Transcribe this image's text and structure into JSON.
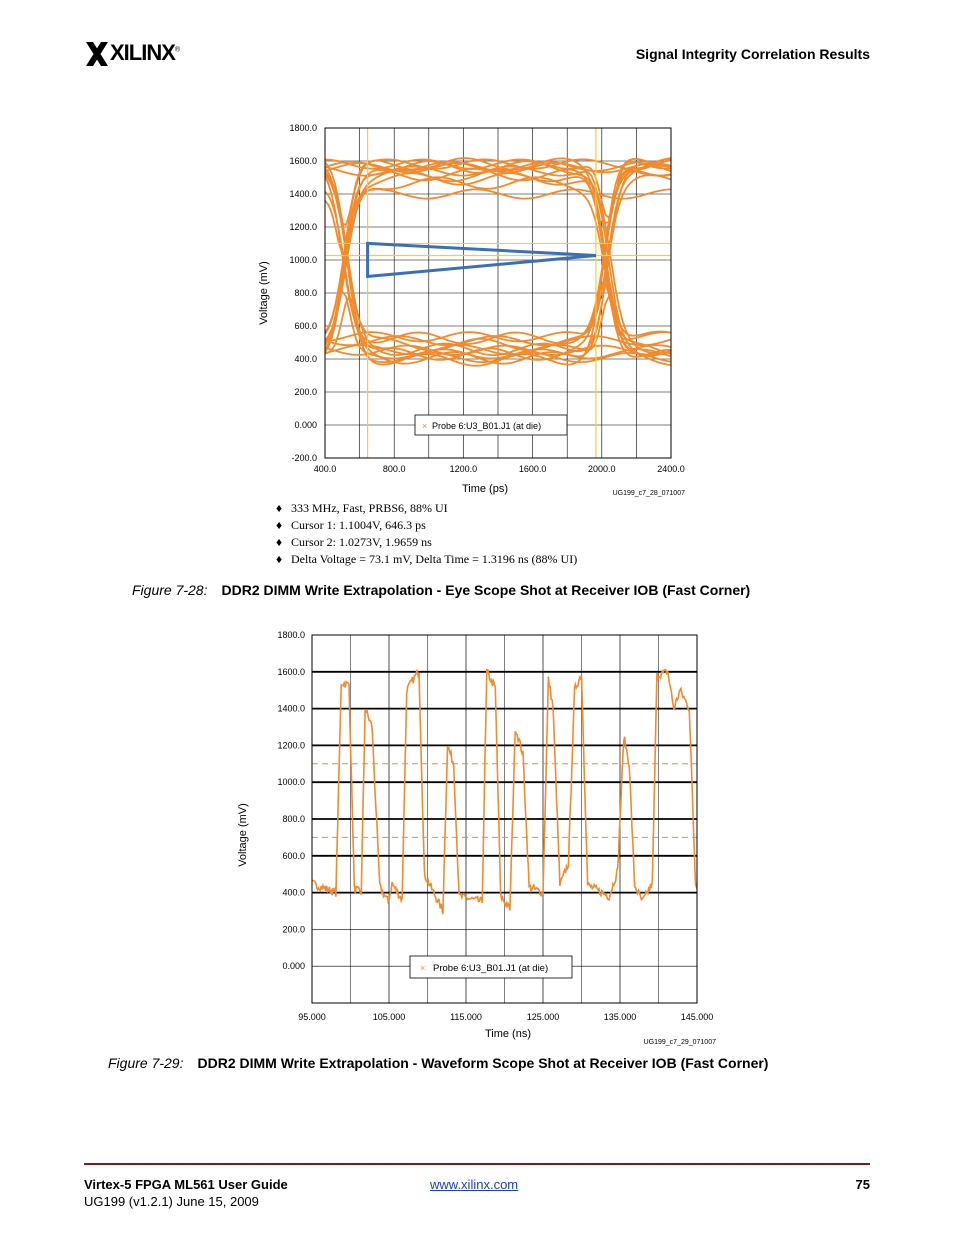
{
  "header": {
    "brand": "XILINX",
    "brand_mark": "®",
    "section_title": "Signal Integrity Correlation Results"
  },
  "figure1": {
    "caption_number": "Figure 7-28:",
    "caption_text": "DDR2 DIMM Write Extrapolation - Eye Scope Shot at Receiver IOB (Fast Corner)",
    "notes": [
      "333 MHz, Fast, PRBS6, 88% UI",
      "Cursor 1: 1.1004V, 646.3 ps",
      "Cursor 2: 1.0273V, 1.9659 ns",
      "Delta Voltage = 73.1 mV, Delta Time = 1.3196 ns (88% UI)"
    ],
    "bullet": "♦"
  },
  "figure2": {
    "caption_number": "Figure 7-29:",
    "caption_text": "DDR2 DIMM Write Extrapolation - Waveform Scope Shot at Receiver IOB (Fast Corner)"
  },
  "chart_data": [
    {
      "type": "line",
      "subtype": "eye-diagram",
      "xlabel": "Time (ps)",
      "ylabel": "Voltage (mV)",
      "x_ticks": [
        "400.0",
        "800.0",
        "1200.0",
        "1600.0",
        "2000.0",
        "2400.0"
      ],
      "y_ticks": [
        "-200.0",
        "0.000",
        "200.0",
        "400.0",
        "600.0",
        "800.0",
        "1000.0",
        "1200.0",
        "1400.0",
        "1600.0",
        "1800.0"
      ],
      "xlim": [
        400,
        2400
      ],
      "ylim": [
        -200,
        1800
      ],
      "grid": true,
      "legend": "bottom-center",
      "series": [
        {
          "name": "Probe 6:U3_B01.J1 (at die)",
          "color": "#f28a2e"
        }
      ],
      "cursor1": {
        "x": 646.3,
        "y": 1100.4
      },
      "cursor2": {
        "x": 1965.9,
        "y": 1027.3
      },
      "eye_mask": [
        [
          646.3,
          1100.4
        ],
        [
          1965.9,
          1027.3
        ],
        [
          646.3,
          900
        ]
      ],
      "mask_color": "#3b6fb6",
      "cursor_color": "#f2d22e",
      "high_level": 1500,
      "low_level": 450,
      "crossings": [
        520,
        2030
      ],
      "figure_id": "UG199_c7_28_071007"
    },
    {
      "type": "line",
      "subtype": "waveform",
      "xlabel": "Time (ns)",
      "ylabel": "Voltage (mV)",
      "x_ticks": [
        "95.000",
        "105.000",
        "115.000",
        "125.000",
        "135.000",
        "145.000"
      ],
      "y_ticks": [
        "0.000",
        "200.0",
        "400.0",
        "600.0",
        "800.0",
        "1000.0",
        "1200.0",
        "1400.0",
        "1600.0",
        "1800.0"
      ],
      "xlim": [
        95,
        145
      ],
      "ylim": [
        -200,
        1800
      ],
      "grid": true,
      "legend": "bottom-center",
      "thresholds": [
        1100,
        700
      ],
      "series": [
        {
          "name": "Probe 6:U3_B01.J1 (at die)",
          "color": "#f28a2e"
        }
      ],
      "levels": [
        [
          95,
          450
        ],
        [
          98.1,
          400
        ],
        [
          98.8,
          1540
        ],
        [
          99.8,
          1530
        ],
        [
          100.5,
          420
        ],
        [
          101.4,
          400
        ],
        [
          101.9,
          1400
        ],
        [
          102.8,
          1300
        ],
        [
          103.8,
          430
        ],
        [
          104.9,
          350
        ],
        [
          105.4,
          450
        ],
        [
          106.7,
          360
        ],
        [
          107.3,
          1500
        ],
        [
          108.9,
          1610
        ],
        [
          109.6,
          500
        ],
        [
          112.0,
          300
        ],
        [
          112.6,
          1200
        ],
        [
          113.4,
          1100
        ],
        [
          114.1,
          380
        ],
        [
          117.1,
          350
        ],
        [
          117.7,
          1600
        ],
        [
          118.8,
          1510
        ],
        [
          119.5,
          380
        ],
        [
          120.7,
          310
        ],
        [
          121.4,
          1300
        ],
        [
          122.4,
          1150
        ],
        [
          123.2,
          430
        ],
        [
          125.0,
          400
        ],
        [
          125.7,
          1560
        ],
        [
          126.3,
          1410
        ],
        [
          127.2,
          440
        ],
        [
          128.3,
          560
        ],
        [
          129.1,
          1500
        ],
        [
          130.0,
          1590
        ],
        [
          130.8,
          440
        ],
        [
          133.6,
          380
        ],
        [
          134.7,
          520
        ],
        [
          135.5,
          1250
        ],
        [
          136.2,
          1100
        ],
        [
          136.9,
          440
        ],
        [
          137.9,
          350
        ],
        [
          139.2,
          450
        ],
        [
          139.8,
          1580
        ],
        [
          141.2,
          1600
        ],
        [
          142.0,
          1400
        ],
        [
          142.8,
          1500
        ],
        [
          144.0,
          1400
        ],
        [
          144.8,
          450
        ],
        [
          145,
          450
        ]
      ],
      "figure_id": "UG199_c7_29_071007"
    }
  ],
  "footer": {
    "doc_title": "Virtex-5 FPGA ML561 User Guide",
    "doc_version": "UG199 (v1.2.1) June 15, 2009",
    "website": "www.xilinx.com",
    "page_number": "75"
  }
}
